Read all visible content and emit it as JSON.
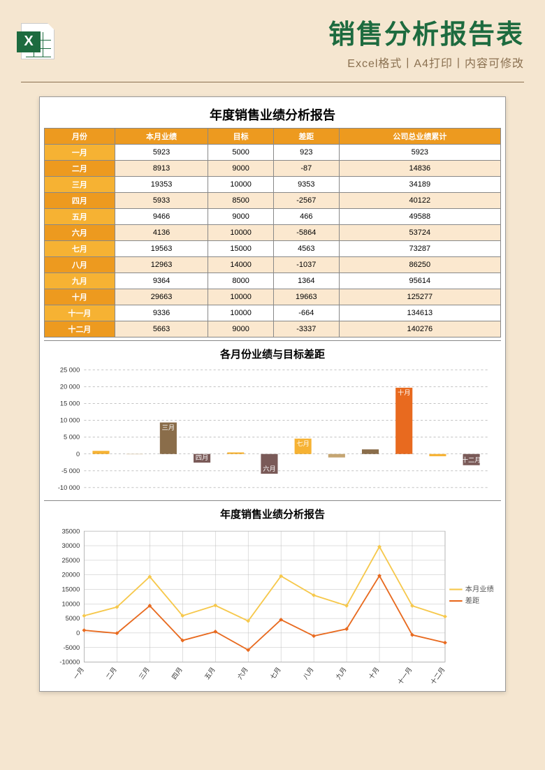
{
  "header": {
    "title": "销售分析报告表",
    "subtitle": "Excel格式丨A4打印丨内容可修改"
  },
  "report_title": "年度销售业绩分析报告",
  "table": {
    "header_bg": "#ed9a1f",
    "row_head_colors_alt": [
      "#f6b233",
      "#ed9a1f"
    ],
    "body_row_bg_alt": [
      "#ffffff",
      "#fbe8cf"
    ],
    "columns": [
      "月份",
      "本月业绩",
      "目标",
      "差距",
      "公司总业绩累计"
    ],
    "rows": [
      {
        "m": "一月",
        "perf": 5923,
        "target": 5000,
        "diff": 923,
        "cum": 5923
      },
      {
        "m": "二月",
        "perf": 8913,
        "target": 9000,
        "diff": -87,
        "cum": 14836
      },
      {
        "m": "三月",
        "perf": 19353,
        "target": 10000,
        "diff": 9353,
        "cum": 34189
      },
      {
        "m": "四月",
        "perf": 5933,
        "target": 8500,
        "diff": -2567,
        "cum": 40122
      },
      {
        "m": "五月",
        "perf": 9466,
        "target": 9000,
        "diff": 466,
        "cum": 49588
      },
      {
        "m": "六月",
        "perf": 4136,
        "target": 10000,
        "diff": -5864,
        "cum": 53724
      },
      {
        "m": "七月",
        "perf": 19563,
        "target": 15000,
        "diff": 4563,
        "cum": 73287
      },
      {
        "m": "八月",
        "perf": 12963,
        "target": 14000,
        "diff": -1037,
        "cum": 86250
      },
      {
        "m": "九月",
        "perf": 9364,
        "target": 8000,
        "diff": 1364,
        "cum": 95614
      },
      {
        "m": "十月",
        "perf": 29663,
        "target": 10000,
        "diff": 19663,
        "cum": 125277
      },
      {
        "m": "十一月",
        "perf": 9336,
        "target": 10000,
        "diff": -664,
        "cum": 134613
      },
      {
        "m": "十二月",
        "perf": 5663,
        "target": 9000,
        "diff": -3337,
        "cum": 140276
      }
    ]
  },
  "bar_chart": {
    "title": "各月份业绩与目标差距",
    "ylim": [
      -10000,
      25000
    ],
    "ytick_step": 5000,
    "grid_color": "#888888",
    "bg": "#ffffff",
    "bar_colors": [
      "#f6b233",
      "#c5a572",
      "#8a6d4a",
      "#7a5a58",
      "#f6b233",
      "#7a5a58",
      "#f6b233",
      "#c5a572",
      "#8a6d4a",
      "#e86a1f",
      "#f6b233",
      "#7a5a58"
    ],
    "labeled_bars": {
      "2": "三月",
      "3": "四月",
      "5": "六月",
      "6": "七月",
      "9": "十月",
      "11": "十二月"
    },
    "label_fontsize": 9,
    "axis_fontsize": 9
  },
  "line_chart": {
    "title": "年度销售业绩分析报告",
    "series": [
      {
        "name": "本月业绩",
        "color": "#f6c84c",
        "key": "perf"
      },
      {
        "name": "差距",
        "color": "#e86a1f",
        "key": "diff"
      }
    ],
    "ylim": [
      -10000,
      35000
    ],
    "ytick_step": 5000,
    "grid_color": "#bfbfbf",
    "axis_fontsize": 9,
    "legend_fontsize": 10
  },
  "colors": {
    "page_bg": "#f5e6d0",
    "excel_green": "#1d6b3f"
  }
}
